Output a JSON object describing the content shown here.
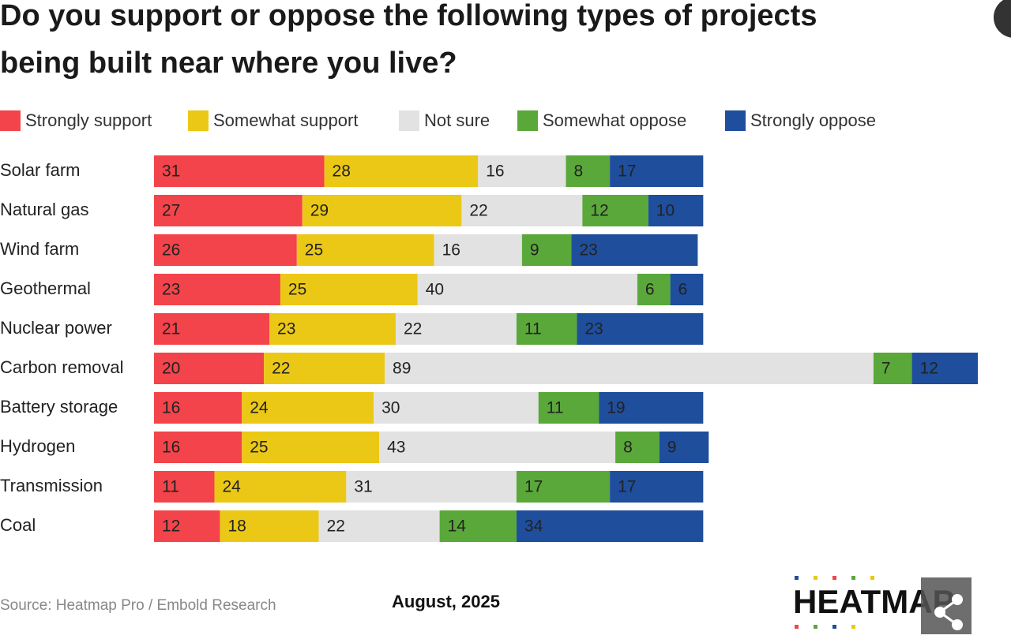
{
  "chart_data": {
    "type": "stacked-bar-horizontal",
    "title": "Do you support or oppose the following types of projects being built near where you live?",
    "categories": [
      "Solar farm",
      "Natural gas",
      "Wind farm",
      "Geothermal",
      "Nuclear power",
      "Carbon removal",
      "Battery storage",
      "Hydrogen",
      "Transmission",
      "Coal"
    ],
    "series": [
      {
        "name": "Strongly support",
        "color": "#f2444a",
        "values": [
          31,
          27,
          26,
          23,
          21,
          20,
          16,
          16,
          11,
          12
        ]
      },
      {
        "name": "Somewhat support",
        "color": "#ebc815",
        "values": [
          28,
          29,
          25,
          25,
          23,
          22,
          24,
          25,
          24,
          18
        ]
      },
      {
        "name": "Not sure",
        "color": "#e2e2e2",
        "values": [
          16,
          22,
          16,
          40,
          22,
          89,
          30,
          43,
          31,
          22
        ]
      },
      {
        "name": "Somewhat oppose",
        "color": "#5aa83a",
        "values": [
          8,
          12,
          9,
          6,
          11,
          7,
          11,
          8,
          17,
          14
        ]
      },
      {
        "name": "Strongly oppose",
        "color": "#1f4e9c",
        "values": [
          17,
          10,
          23,
          6,
          23,
          12,
          19,
          9,
          17,
          34
        ]
      }
    ],
    "source": "Source: Heatmap Pro / Embold Research",
    "date": "August, 2025",
    "logo": "HEATMAP"
  }
}
